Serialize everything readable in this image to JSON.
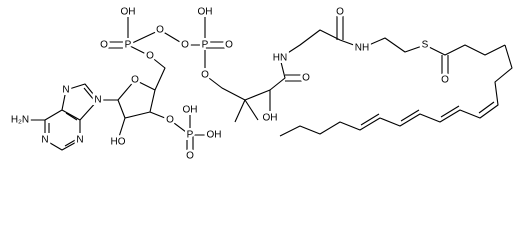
{
  "labels": [
    "H₂N",
    "N",
    "N",
    "N",
    "N",
    "O",
    "HO",
    "O",
    "P",
    "O",
    "OH",
    "OH",
    "O",
    "P",
    "OH",
    "O",
    "O",
    "O",
    "P",
    "OH",
    "O",
    "O",
    "OH",
    "O",
    "HN",
    "O",
    "NH",
    "S",
    "O"
  ]
}
